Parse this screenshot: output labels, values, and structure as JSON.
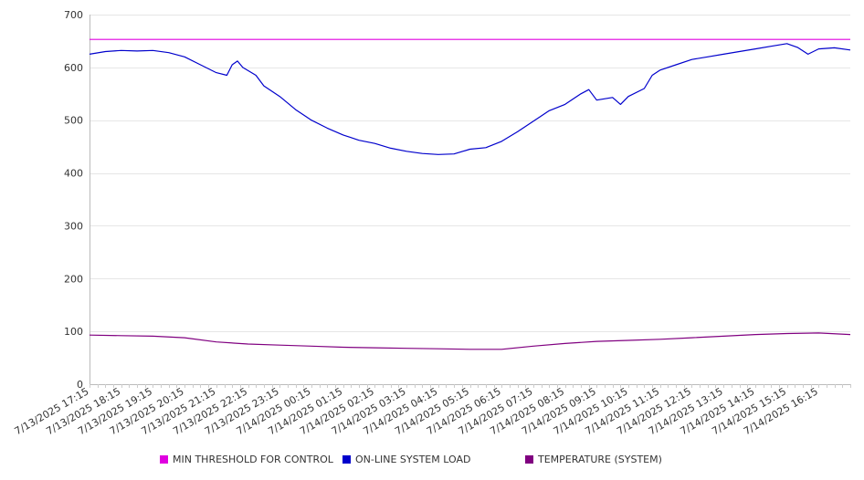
{
  "chart_data": {
    "type": "line",
    "title": "",
    "xlabel": "",
    "ylabel": "",
    "ylim": [
      0,
      700
    ],
    "yticks": [
      0,
      100,
      200,
      300,
      400,
      500,
      600,
      700
    ],
    "grid": "horizontal",
    "legend_position": "bottom",
    "x_tick_labels": [
      "7/13/2025 17:15",
      "7/13/2025 18:15",
      "7/13/2025 19:15",
      "7/13/2025 20:15",
      "7/13/2025 21:15",
      "7/13/2025 22:15",
      "7/13/2025 23:15",
      "7/14/2025 00:15",
      "7/14/2025 01:15",
      "7/14/2025 02:15",
      "7/14/2025 03:15",
      "7/14/2025 04:15",
      "7/14/2025 05:15",
      "7/14/2025 06:15",
      "7/14/2025 07:15",
      "7/14/2025 08:15",
      "7/14/2025 09:15",
      "7/14/2025 10:15",
      "7/14/2025 11:15",
      "7/14/2025 12:15",
      "7/14/2025 13:15",
      "7/14/2025 14:15",
      "7/14/2025 15:15",
      "7/14/2025 16:15"
    ],
    "x_range": [
      "7/13/2025 17:15",
      "7/14/2025 17:15"
    ],
    "series": [
      {
        "name": "MIN THRESHOLD FOR CONTROL",
        "color": "#e000e0",
        "points": [
          [
            "7/13/2025 17:15",
            653
          ],
          [
            "7/14/2025 17:15",
            653
          ]
        ]
      },
      {
        "name": "ON-LINE SYSTEM LOAD",
        "color": "#0000cc",
        "points": [
          [
            "7/13/2025 17:15",
            625
          ],
          [
            "7/13/2025 17:45",
            630
          ],
          [
            "7/13/2025 18:15",
            632
          ],
          [
            "7/13/2025 18:45",
            631
          ],
          [
            "7/13/2025 19:15",
            632
          ],
          [
            "7/13/2025 19:45",
            628
          ],
          [
            "7/13/2025 20:15",
            620
          ],
          [
            "7/13/2025 20:45",
            605
          ],
          [
            "7/13/2025 21:15",
            590
          ],
          [
            "7/13/2025 21:35",
            585
          ],
          [
            "7/13/2025 21:45",
            605
          ],
          [
            "7/13/2025 21:55",
            612
          ],
          [
            "7/13/2025 22:05",
            600
          ],
          [
            "7/13/2025 22:30",
            585
          ],
          [
            "7/13/2025 22:45",
            565
          ],
          [
            "7/13/2025 23:15",
            545
          ],
          [
            "7/13/2025 23:45",
            520
          ],
          [
            "7/14/2025 00:15",
            500
          ],
          [
            "7/14/2025 00:45",
            485
          ],
          [
            "7/14/2025 01:15",
            472
          ],
          [
            "7/14/2025 01:45",
            462
          ],
          [
            "7/14/2025 02:15",
            456
          ],
          [
            "7/14/2025 02:45",
            447
          ],
          [
            "7/14/2025 03:15",
            441
          ],
          [
            "7/14/2025 03:45",
            437
          ],
          [
            "7/14/2025 04:15",
            435
          ],
          [
            "7/14/2025 04:45",
            436
          ],
          [
            "7/14/2025 05:15",
            445
          ],
          [
            "7/14/2025 05:45",
            448
          ],
          [
            "7/14/2025 06:15",
            460
          ],
          [
            "7/14/2025 06:45",
            478
          ],
          [
            "7/14/2025 07:15",
            498
          ],
          [
            "7/14/2025 07:45",
            518
          ],
          [
            "7/14/2025 08:15",
            530
          ],
          [
            "7/14/2025 08:45",
            550
          ],
          [
            "7/14/2025 09:00",
            558
          ],
          [
            "7/14/2025 09:15",
            538
          ],
          [
            "7/14/2025 09:45",
            543
          ],
          [
            "7/14/2025 10:00",
            530
          ],
          [
            "7/14/2025 10:15",
            545
          ],
          [
            "7/14/2025 10:45",
            560
          ],
          [
            "7/14/2025 11:00",
            585
          ],
          [
            "7/14/2025 11:15",
            595
          ],
          [
            "7/14/2025 11:45",
            605
          ],
          [
            "7/14/2025 12:15",
            615
          ],
          [
            "7/14/2025 12:45",
            620
          ],
          [
            "7/14/2025 13:15",
            625
          ],
          [
            "7/14/2025 13:45",
            630
          ],
          [
            "7/14/2025 14:15",
            635
          ],
          [
            "7/14/2025 14:45",
            640
          ],
          [
            "7/14/2025 15:15",
            645
          ],
          [
            "7/14/2025 15:35",
            638
          ],
          [
            "7/14/2025 15:55",
            625
          ],
          [
            "7/14/2025 16:15",
            635
          ],
          [
            "7/14/2025 16:45",
            637
          ],
          [
            "7/14/2025 17:15",
            633
          ]
        ]
      },
      {
        "name": "TEMPERATURE (SYSTEM)",
        "color": "#800080",
        "points": [
          [
            "7/13/2025 17:15",
            93
          ],
          [
            "7/13/2025 18:15",
            92
          ],
          [
            "7/13/2025 19:15",
            91
          ],
          [
            "7/13/2025 20:15",
            88
          ],
          [
            "7/13/2025 21:15",
            80
          ],
          [
            "7/13/2025 22:15",
            76
          ],
          [
            "7/13/2025 23:15",
            74
          ],
          [
            "7/14/2025 00:15",
            72
          ],
          [
            "7/14/2025 01:15",
            70
          ],
          [
            "7/14/2025 02:15",
            69
          ],
          [
            "7/14/2025 03:15",
            68
          ],
          [
            "7/14/2025 04:15",
            67
          ],
          [
            "7/14/2025 05:15",
            66
          ],
          [
            "7/14/2025 06:15",
            66
          ],
          [
            "7/14/2025 07:15",
            72
          ],
          [
            "7/14/2025 08:15",
            77
          ],
          [
            "7/14/2025 09:15",
            81
          ],
          [
            "7/14/2025 10:15",
            83
          ],
          [
            "7/14/2025 11:15",
            85
          ],
          [
            "7/14/2025 12:15",
            88
          ],
          [
            "7/14/2025 13:15",
            91
          ],
          [
            "7/14/2025 14:15",
            94
          ],
          [
            "7/14/2025 15:15",
            96
          ],
          [
            "7/14/2025 16:15",
            97
          ],
          [
            "7/14/2025 17:15",
            94
          ]
        ]
      }
    ]
  }
}
